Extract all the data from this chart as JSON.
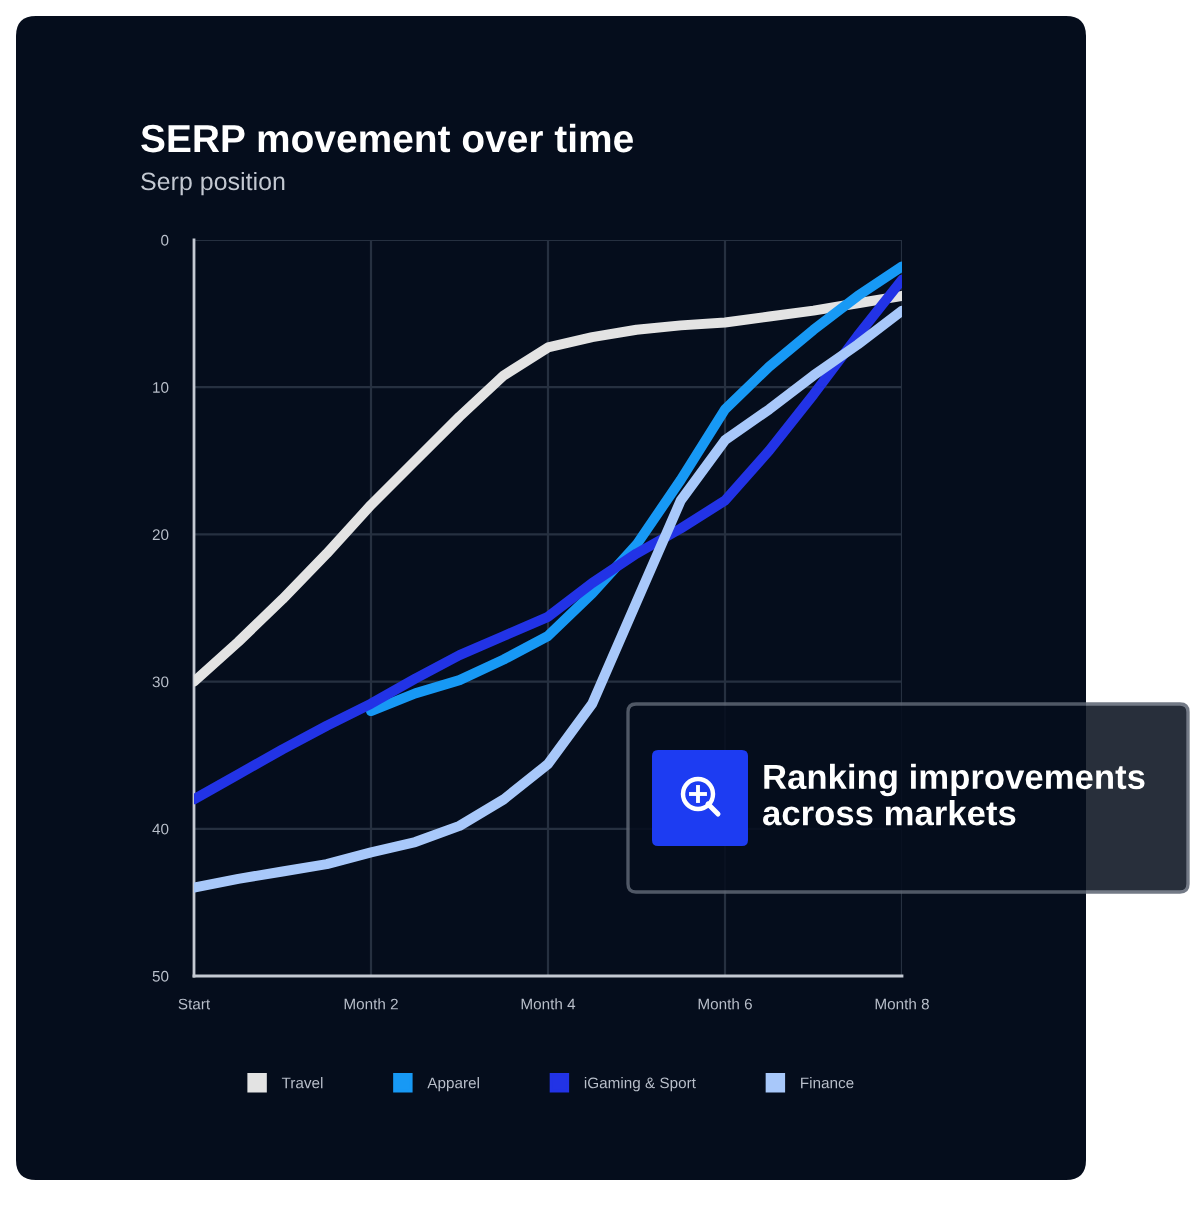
{
  "chart_data": {
    "type": "line",
    "title": "SERP movement over time",
    "ylabel": "Serp position",
    "categories": [
      "Start",
      null,
      null,
      null,
      "Month 2",
      null,
      null,
      null,
      "Month 4",
      null,
      null,
      null,
      "Month 6",
      null,
      null,
      null,
      "Month 8"
    ],
    "ylim": [
      50,
      0
    ],
    "yticks": [
      0,
      10,
      20,
      30,
      40,
      50
    ],
    "grid": true,
    "legend": "bottom",
    "line_style": "solid",
    "series": [
      {
        "name": "Travel",
        "color": "#e3e3e3",
        "values": [
          30,
          27.3,
          24.4,
          21.3,
          18.0,
          15.0,
          12.0,
          9.2,
          7.3,
          6.6,
          6.1,
          5.8,
          5.6,
          5.2,
          4.8,
          4.3,
          3.8
        ]
      },
      {
        "name": "Apparel",
        "color": "#1799f5",
        "values": [
          null,
          null,
          null,
          null,
          32.0,
          30.8,
          29.9,
          28.5,
          26.9,
          24.0,
          20.7,
          16.3,
          11.5,
          8.6,
          6.1,
          3.8,
          1.8
        ]
      },
      {
        "name": "iGaming & Sport",
        "color": "#2233e6",
        "values": [
          38,
          36.3,
          34.6,
          33.0,
          31.5,
          29.8,
          28.2,
          26.9,
          25.6,
          23.3,
          21.3,
          19.6,
          17.7,
          14.3,
          10.5,
          6.5,
          2.7
        ]
      },
      {
        "name": "Finance",
        "color": "#a8c8fa",
        "values": [
          44,
          43.4,
          42.9,
          42.4,
          41.6,
          40.9,
          39.8,
          38.0,
          35.6,
          31.5,
          24.6,
          17.7,
          13.6,
          11.5,
          9.2,
          7.1,
          4.8
        ]
      }
    ],
    "annotations": [
      "Ranking improvements\nacross markets"
    ]
  }
}
